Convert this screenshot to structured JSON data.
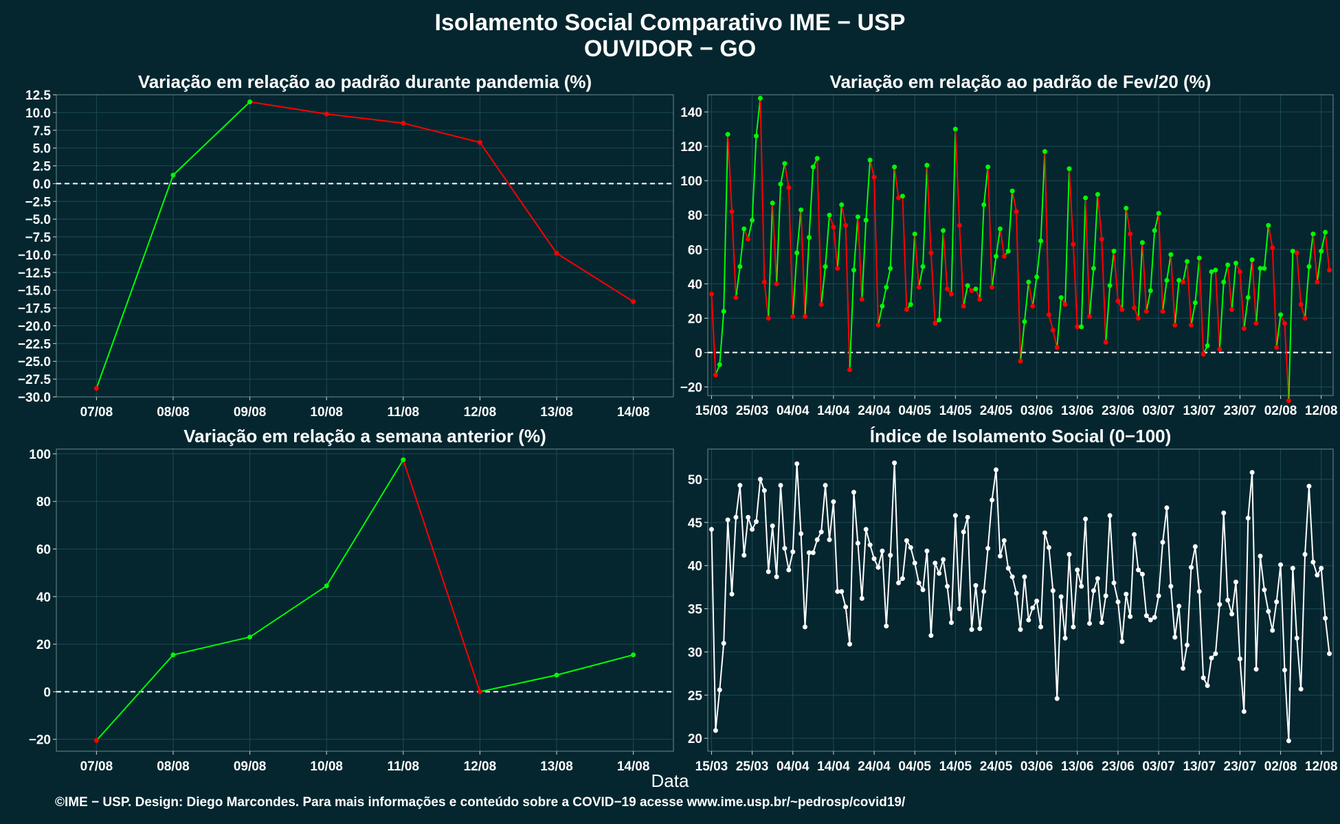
{
  "title_line1": "Isolamento Social Comparativo IME − USP",
  "title_line2": "OUVIDOR − GO",
  "xlabel": "Data",
  "credit": "©IME − USP. Design: Diego Marcondes. Para mais informações e conteúdo sobre a COVID−19 acesse www.ime.usp.br/~pedrosp/covid19/",
  "colors": {
    "background": "#05262f",
    "up": "#00ff00",
    "down": "#ff0000",
    "index": "#ffffff",
    "grid": "#1e4a55"
  },
  "chart_data": [
    {
      "type": "line",
      "title": "Variação em relação ao padrão durante pandemia (%)",
      "categories": [
        "07/08",
        "08/08",
        "09/08",
        "10/08",
        "11/08",
        "12/08",
        "13/08",
        "14/08"
      ],
      "values": [
        -28.8,
        1.2,
        11.5,
        9.8,
        8.5,
        5.8,
        -9.8,
        -16.6
      ],
      "ylim": [
        -30,
        12.5
      ],
      "yticks": [
        12.5,
        10.0,
        7.5,
        5.0,
        2.5,
        0.0,
        -2.5,
        -5.0,
        -7.5,
        -10.0,
        -12.5,
        -15.0,
        -17.5,
        -20.0,
        -22.5,
        -25.0,
        -27.5,
        -30.0
      ],
      "ytick_labels": [
        "12.5",
        "10.0",
        "7.5",
        "5.0",
        "2.5",
        "0.0",
        "−2.5",
        "−5.0",
        "−7.5",
        "−10.0",
        "−12.5",
        "−15.0",
        "−17.5",
        "−20.0",
        "−22.5",
        "−25.0",
        "−27.5",
        "−30.0"
      ],
      "reference_line": 0
    },
    {
      "type": "line",
      "title": "Variação em relação ao padrão de Fev/20 (%)",
      "x_start": "15/03",
      "x_tick_labels": [
        "15/03",
        "25/03",
        "04/04",
        "14/04",
        "24/04",
        "04/05",
        "14/05",
        "24/05",
        "03/06",
        "13/06",
        "23/06",
        "03/07",
        "13/07",
        "23/07",
        "02/08",
        "12/08"
      ],
      "values": [
        34,
        -13,
        -7,
        24,
        127,
        82,
        32,
        50,
        72,
        66,
        77,
        126,
        148,
        41,
        20,
        87,
        40,
        98,
        110,
        96,
        21,
        58,
        83,
        21,
        67,
        108,
        113,
        28,
        50,
        80,
        73,
        49,
        86,
        74,
        -10,
        48,
        79,
        31,
        77,
        112,
        102,
        16,
        27,
        38,
        49,
        108,
        90,
        91,
        25,
        28,
        69,
        38,
        50,
        109,
        58,
        17,
        19,
        71,
        37,
        34,
        130,
        74,
        27,
        39,
        36,
        37,
        31,
        86,
        108,
        38,
        56,
        72,
        56,
        59,
        94,
        82,
        -5,
        18,
        41,
        27,
        44,
        65,
        117,
        22,
        13,
        3,
        32,
        28,
        107,
        63,
        15,
        15,
        90,
        21,
        49,
        92,
        66,
        6,
        39,
        59,
        30,
        25,
        84,
        69,
        26,
        20,
        64,
        24,
        36,
        71,
        81,
        24,
        42,
        57,
        16,
        42,
        41,
        53,
        16,
        29,
        55,
        -1,
        4,
        47,
        48,
        2,
        41,
        51,
        25,
        52,
        47,
        14,
        32,
        54,
        17,
        49,
        49,
        74,
        61,
        3,
        22,
        17,
        -28,
        59,
        58,
        28,
        20,
        50,
        69,
        41,
        59,
        70,
        48
      ],
      "ylim": [
        -25,
        150
      ],
      "yticks": [
        140,
        120,
        100,
        80,
        60,
        40,
        20,
        0,
        -20
      ],
      "ytick_labels": [
        "140",
        "120",
        "100",
        "80",
        "60",
        "40",
        "20",
        "0",
        "−20"
      ],
      "reference_line": 0
    },
    {
      "type": "line",
      "title": "Variação em relação a semana anterior (%)",
      "categories": [
        "07/08",
        "08/08",
        "09/08",
        "10/08",
        "11/08",
        "12/08",
        "13/08",
        "14/08"
      ],
      "values": [
        -20.5,
        15.5,
        23.0,
        44.5,
        97.5,
        0.0,
        7.0,
        15.5
      ],
      "ylim": [
        -25,
        102
      ],
      "yticks": [
        100,
        80,
        60,
        40,
        20,
        0,
        -20
      ],
      "ytick_labels": [
        "100",
        "80",
        "60",
        "40",
        "20",
        "0",
        "−20"
      ],
      "reference_line": 0
    },
    {
      "type": "line",
      "title": "Índice de Isolamento Social (0−100)",
      "x_start": "15/03",
      "x_tick_labels": [
        "15/03",
        "25/03",
        "04/04",
        "14/04",
        "24/04",
        "04/05",
        "14/05",
        "24/05",
        "03/06",
        "13/06",
        "23/06",
        "03/07",
        "13/07",
        "23/07",
        "02/08",
        "12/08"
      ],
      "values": [
        44.2,
        20.9,
        25.6,
        31.0,
        45.3,
        36.7,
        45.6,
        49.3,
        41.2,
        45.6,
        44.2,
        45.1,
        50.0,
        48.7,
        39.3,
        44.6,
        38.7,
        49.3,
        42.0,
        39.5,
        41.6,
        51.8,
        43.7,
        32.9,
        41.5,
        41.5,
        43.0,
        43.9,
        49.3,
        43.0,
        47.4,
        37.0,
        37.0,
        35.2,
        30.9,
        48.5,
        42.6,
        36.2,
        44.2,
        42.4,
        40.8,
        39.8,
        41.7,
        33.0,
        41.2,
        51.9,
        38.0,
        38.5,
        42.9,
        42.1,
        40.3,
        38.0,
        37.2,
        41.7,
        31.9,
        40.3,
        39.1,
        40.7,
        37.6,
        33.4,
        45.8,
        35.0,
        43.9,
        45.6,
        32.6,
        37.7,
        32.7,
        37.0,
        42.0,
        47.6,
        51.1,
        41.1,
        42.9,
        39.7,
        38.7,
        36.8,
        32.6,
        38.7,
        33.7,
        35.1,
        35.9,
        32.9,
        43.8,
        42.1,
        37.1,
        24.6,
        36.4,
        31.6,
        41.3,
        32.9,
        39.5,
        37.6,
        45.4,
        33.3,
        37.1,
        38.5,
        33.4,
        36.5,
        45.8,
        38.0,
        35.8,
        31.2,
        36.7,
        34.1,
        43.6,
        39.5,
        39.0,
        34.2,
        33.7,
        34.0,
        36.5,
        42.7,
        46.7,
        37.6,
        31.7,
        35.3,
        28.1,
        30.8,
        39.8,
        42.2,
        37.0,
        27.0,
        26.1,
        29.3,
        29.8,
        35.5,
        46.1,
        36.0,
        34.4,
        38.1,
        29.2,
        23.1,
        45.5,
        50.8,
        28.0,
        41.1,
        37.2,
        34.7,
        32.5,
        35.8,
        40.1,
        27.9,
        19.7,
        39.7,
        31.6,
        25.7,
        41.3,
        49.2,
        40.4,
        38.9,
        39.7,
        33.9,
        29.8
      ],
      "ylim": [
        18.5,
        53.5
      ],
      "yticks": [
        50,
        45,
        40,
        35,
        30,
        25,
        20
      ],
      "ytick_labels": [
        "50",
        "45",
        "40",
        "35",
        "30",
        "25",
        "20"
      ]
    }
  ]
}
